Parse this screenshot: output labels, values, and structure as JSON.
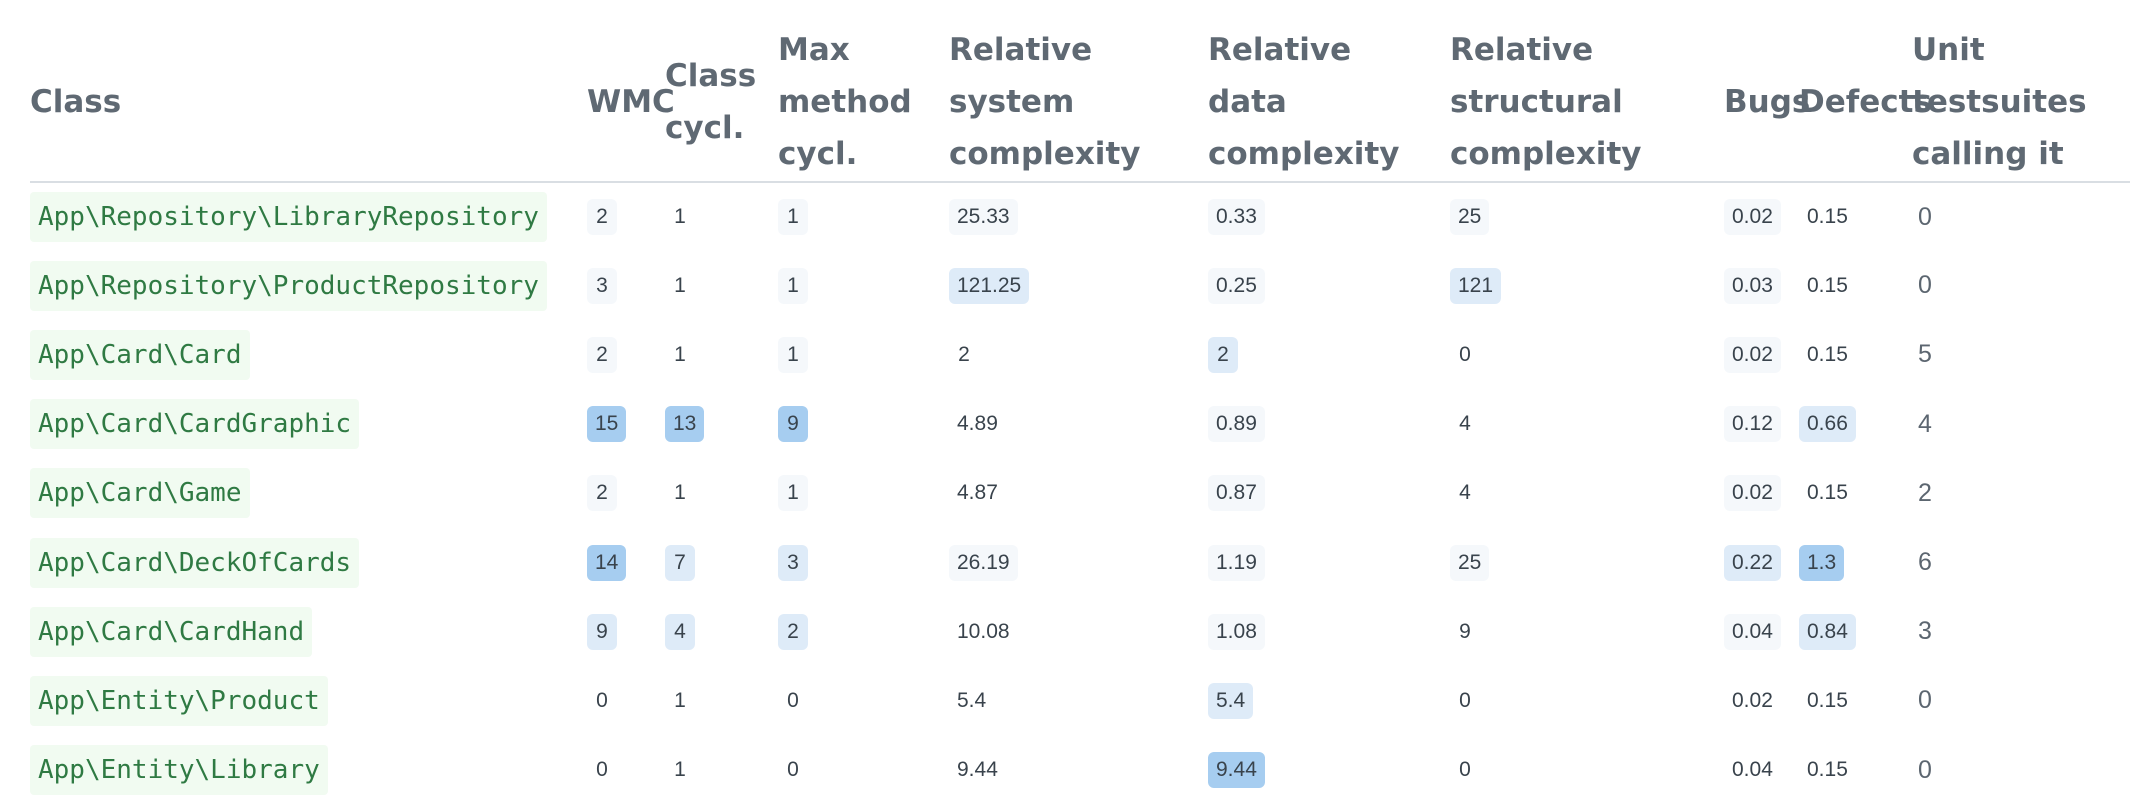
{
  "table": {
    "headers": [
      "Class",
      "WMC",
      "Class cycl.",
      "Max method cycl.",
      "Relative system complexity",
      "Relative data complexity",
      "Relative structural complexity",
      "Bugs",
      "Defects",
      "Unit testsuites calling it"
    ],
    "rows": [
      {
        "class": "App\\Repository\\LibraryRepository",
        "cells": [
          {
            "v": "2",
            "lvl": 1
          },
          {
            "v": "1",
            "lvl": 0
          },
          {
            "v": "1",
            "lvl": 1
          },
          {
            "v": "25.33",
            "lvl": 1
          },
          {
            "v": "0.33",
            "lvl": 1
          },
          {
            "v": "25",
            "lvl": 1
          },
          {
            "v": "0.02",
            "lvl": 1
          },
          {
            "v": "0.15",
            "lvl": 0
          }
        ],
        "tests": "0"
      },
      {
        "class": "App\\Repository\\ProductRepository",
        "cells": [
          {
            "v": "3",
            "lvl": 1
          },
          {
            "v": "1",
            "lvl": 0
          },
          {
            "v": "1",
            "lvl": 1
          },
          {
            "v": "121.25",
            "lvl": 2
          },
          {
            "v": "0.25",
            "lvl": 1
          },
          {
            "v": "121",
            "lvl": 2
          },
          {
            "v": "0.03",
            "lvl": 1
          },
          {
            "v": "0.15",
            "lvl": 0
          }
        ],
        "tests": "0"
      },
      {
        "class": "App\\Card\\Card",
        "cells": [
          {
            "v": "2",
            "lvl": 1
          },
          {
            "v": "1",
            "lvl": 0
          },
          {
            "v": "1",
            "lvl": 1
          },
          {
            "v": "2",
            "lvl": 0
          },
          {
            "v": "2",
            "lvl": 2
          },
          {
            "v": "0",
            "lvl": 0
          },
          {
            "v": "0.02",
            "lvl": 1
          },
          {
            "v": "0.15",
            "lvl": 0
          }
        ],
        "tests": "5"
      },
      {
        "class": "App\\Card\\CardGraphic",
        "cells": [
          {
            "v": "15",
            "lvl": 3
          },
          {
            "v": "13",
            "lvl": 3
          },
          {
            "v": "9",
            "lvl": 3
          },
          {
            "v": "4.89",
            "lvl": 0
          },
          {
            "v": "0.89",
            "lvl": 1
          },
          {
            "v": "4",
            "lvl": 0
          },
          {
            "v": "0.12",
            "lvl": 1
          },
          {
            "v": "0.66",
            "lvl": 2
          }
        ],
        "tests": "4"
      },
      {
        "class": "App\\Card\\Game",
        "cells": [
          {
            "v": "2",
            "lvl": 1
          },
          {
            "v": "1",
            "lvl": 0
          },
          {
            "v": "1",
            "lvl": 1
          },
          {
            "v": "4.87",
            "lvl": 0
          },
          {
            "v": "0.87",
            "lvl": 1
          },
          {
            "v": "4",
            "lvl": 0
          },
          {
            "v": "0.02",
            "lvl": 1
          },
          {
            "v": "0.15",
            "lvl": 0
          }
        ],
        "tests": "2"
      },
      {
        "class": "App\\Card\\DeckOfCards",
        "cells": [
          {
            "v": "14",
            "lvl": 3
          },
          {
            "v": "7",
            "lvl": 2
          },
          {
            "v": "3",
            "lvl": 2
          },
          {
            "v": "26.19",
            "lvl": 1
          },
          {
            "v": "1.19",
            "lvl": 1
          },
          {
            "v": "25",
            "lvl": 1
          },
          {
            "v": "0.22",
            "lvl": 2
          },
          {
            "v": "1.3",
            "lvl": 3
          }
        ],
        "tests": "6"
      },
      {
        "class": "App\\Card\\CardHand",
        "cells": [
          {
            "v": "9",
            "lvl": 2
          },
          {
            "v": "4",
            "lvl": 2
          },
          {
            "v": "2",
            "lvl": 2
          },
          {
            "v": "10.08",
            "lvl": 0
          },
          {
            "v": "1.08",
            "lvl": 1
          },
          {
            "v": "9",
            "lvl": 0
          },
          {
            "v": "0.04",
            "lvl": 1
          },
          {
            "v": "0.84",
            "lvl": 2
          }
        ],
        "tests": "3"
      },
      {
        "class": "App\\Entity\\Product",
        "cells": [
          {
            "v": "0",
            "lvl": 0
          },
          {
            "v": "1",
            "lvl": 0
          },
          {
            "v": "0",
            "lvl": 0
          },
          {
            "v": "5.4",
            "lvl": 0
          },
          {
            "v": "5.4",
            "lvl": 2
          },
          {
            "v": "0",
            "lvl": 0
          },
          {
            "v": "0.02",
            "lvl": 0
          },
          {
            "v": "0.15",
            "lvl": 0
          }
        ],
        "tests": "0"
      },
      {
        "class": "App\\Entity\\Library",
        "cells": [
          {
            "v": "0",
            "lvl": 0
          },
          {
            "v": "1",
            "lvl": 0
          },
          {
            "v": "0",
            "lvl": 0
          },
          {
            "v": "9.44",
            "lvl": 0
          },
          {
            "v": "9.44",
            "lvl": 3
          },
          {
            "v": "0",
            "lvl": 0
          },
          {
            "v": "0.04",
            "lvl": 0
          },
          {
            "v": "0.15",
            "lvl": 0
          }
        ],
        "tests": "0"
      }
    ]
  },
  "colors": {
    "class_text": "#2f7a43",
    "class_bg": "#f1fbf1",
    "level_0": "transparent",
    "level_1": "#f5f8fb",
    "level_2": "#deebf8",
    "level_3": "#a6cdf0",
    "header_text": "#5f6973"
  }
}
